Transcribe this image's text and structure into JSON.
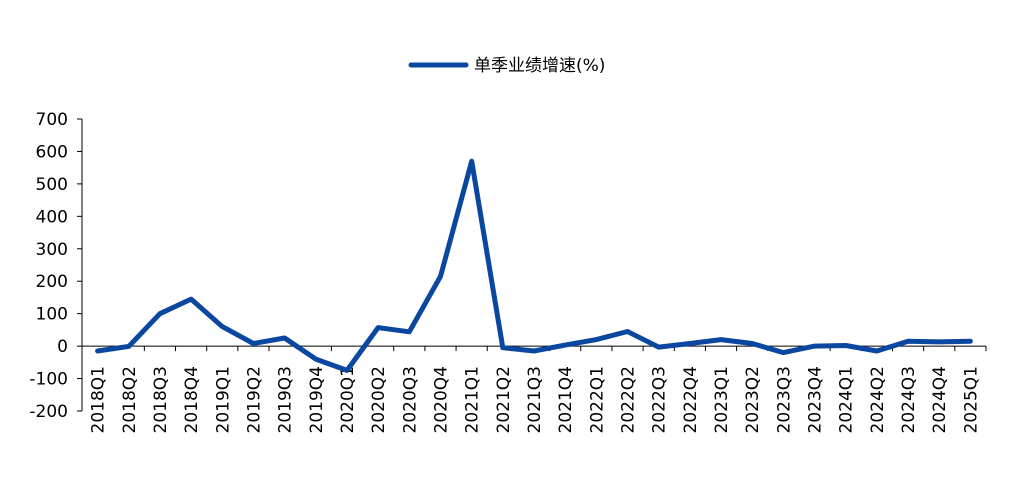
{
  "chart_data": {
    "type": "line",
    "title": "",
    "xlabel": "",
    "ylabel": "",
    "legend_position": "top-center",
    "grid": false,
    "ylim": [
      -200,
      700
    ],
    "yticks": [
      "700",
      "600",
      "500",
      "400",
      "300",
      "200",
      "100",
      "0",
      "-100",
      "-200"
    ],
    "categories": [
      "2018Q1",
      "2018Q2",
      "2018Q3",
      "2018Q4",
      "2019Q1",
      "2019Q2",
      "2019Q3",
      "2019Q4",
      "2020Q1",
      "2020Q2",
      "2020Q3",
      "2020Q4",
      "2021Q1",
      "2021Q2",
      "2021Q3",
      "2021Q4",
      "2022Q1",
      "2022Q2",
      "2022Q3",
      "2022Q4",
      "2023Q1",
      "2023Q2",
      "2023Q3",
      "2023Q4",
      "2024Q1",
      "2024Q2",
      "2024Q3",
      "2024Q4",
      "2025Q1"
    ],
    "series": [
      {
        "name": "单季业绩增速(%)",
        "color": "#0a47a0",
        "values": [
          -15,
          -1,
          100,
          145,
          60,
          8,
          25,
          -40,
          -75,
          57,
          44,
          215,
          570,
          -5,
          -15,
          3,
          20,
          45,
          -3,
          8,
          20,
          8,
          -20,
          0,
          2,
          -15,
          15,
          13,
          15
        ]
      }
    ]
  }
}
